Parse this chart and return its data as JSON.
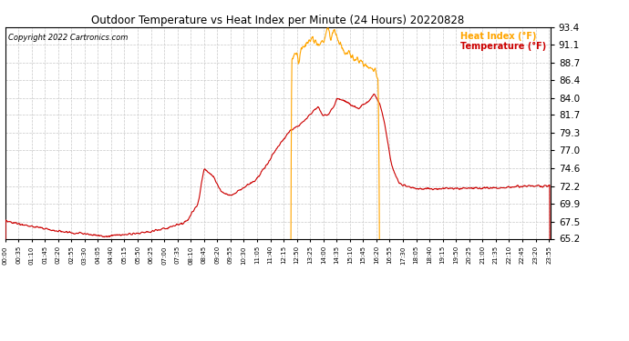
{
  "title": "Outdoor Temperature vs Heat Index per Minute (24 Hours) 20220828",
  "copyright_text": "Copyright 2022 Cartronics.com",
  "legend_heat_index": "Heat Index (°F)",
  "legend_temperature": "Temperature (°F)",
  "ylim": [
    65.2,
    93.4
  ],
  "yticks": [
    65.2,
    67.5,
    69.9,
    72.2,
    74.6,
    77.0,
    79.3,
    81.7,
    84.0,
    86.4,
    88.7,
    91.1,
    93.4
  ],
  "bg_color": "#ffffff",
  "grid_color": "#c8c8c8",
  "temp_color": "#cc0000",
  "heat_index_color": "#ffa500",
  "title_color": "#000000",
  "copyright_color": "#000000"
}
